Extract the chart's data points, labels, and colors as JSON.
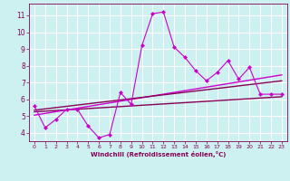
{
  "background_color": "#cdf0f0",
  "grid_color": "#ffffff",
  "line_color_main": "#cc00cc",
  "line_color_dark": "#880055",
  "xlabel": "Windchill (Refroidissement éolien,°C)",
  "xlabel_color": "#880055",
  "tick_color": "#880055",
  "xlim": [
    -0.5,
    23.5
  ],
  "ylim": [
    3.5,
    11.7
  ],
  "yticks": [
    4,
    5,
    6,
    7,
    8,
    9,
    10,
    11
  ],
  "xticks": [
    0,
    1,
    2,
    3,
    4,
    5,
    6,
    7,
    8,
    9,
    10,
    11,
    12,
    13,
    14,
    15,
    16,
    17,
    18,
    19,
    20,
    21,
    22,
    23
  ],
  "series1_x": [
    0,
    1,
    2,
    3,
    4,
    5,
    6,
    7,
    8,
    9,
    10,
    11,
    12,
    13,
    14,
    15,
    16,
    17,
    18,
    19,
    20,
    21,
    22,
    23
  ],
  "series1_y": [
    5.6,
    4.3,
    4.8,
    5.4,
    5.4,
    4.4,
    3.7,
    3.9,
    6.4,
    5.7,
    9.2,
    11.1,
    11.2,
    9.1,
    8.5,
    7.7,
    7.1,
    7.6,
    8.3,
    7.2,
    7.9,
    6.3,
    6.3,
    6.3
  ],
  "trend1_x": [
    0,
    23
  ],
  "trend1_y": [
    5.25,
    6.15
  ],
  "trend2_x": [
    0,
    23
  ],
  "trend2_y": [
    5.05,
    7.45
  ],
  "trend3_x": [
    0,
    23
  ],
  "trend3_y": [
    5.35,
    7.1
  ]
}
